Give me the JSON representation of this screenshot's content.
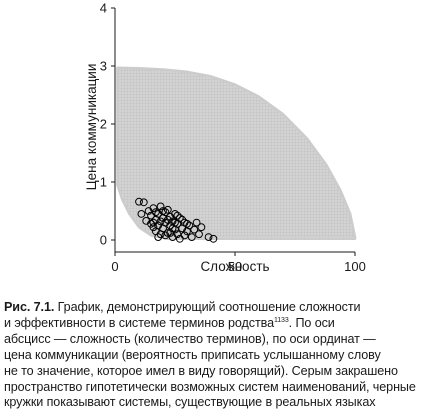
{
  "chart_data": {
    "type": "scatter",
    "title": "",
    "xlabel": "Сложность",
    "ylabel": "Цена коммуникации",
    "xlim": [
      0,
      100
    ],
    "ylim": [
      0,
      4
    ],
    "xticks": [
      "0",
      "50",
      "100"
    ],
    "yticks": [
      "0",
      "1",
      "2",
      "3",
      "4"
    ],
    "grid": false,
    "series": [
      {
        "role": "possible-systems",
        "color": "#cccccc",
        "marker": "dot",
        "region_upper_boundary": [
          {
            "x": 1,
            "y": 2.97
          },
          {
            "x": 10,
            "y": 2.96
          },
          {
            "x": 20,
            "y": 2.94
          },
          {
            "x": 30,
            "y": 2.9
          },
          {
            "x": 40,
            "y": 2.82
          },
          {
            "x": 50,
            "y": 2.68
          },
          {
            "x": 60,
            "y": 2.47
          },
          {
            "x": 70,
            "y": 2.17
          },
          {
            "x": 80,
            "y": 1.75
          },
          {
            "x": 88,
            "y": 1.3
          },
          {
            "x": 94,
            "y": 0.85
          },
          {
            "x": 98,
            "y": 0.45
          },
          {
            "x": 100,
            "y": 0.05
          }
        ],
        "region_lower_boundary": [
          {
            "x": 1,
            "y": 0.95
          },
          {
            "x": 3,
            "y": 0.7
          },
          {
            "x": 6,
            "y": 0.45
          },
          {
            "x": 10,
            "y": 0.22
          },
          {
            "x": 15,
            "y": 0.08
          },
          {
            "x": 22,
            "y": 0.02
          },
          {
            "x": 100,
            "y": 0.02
          }
        ]
      },
      {
        "role": "real-systems",
        "color": "#000000",
        "marker": "open-circle",
        "points": [
          {
            "x": 10,
            "y": 0.66
          },
          {
            "x": 12,
            "y": 0.65
          },
          {
            "x": 11,
            "y": 0.45
          },
          {
            "x": 13,
            "y": 0.33
          },
          {
            "x": 14,
            "y": 0.5
          },
          {
            "x": 15,
            "y": 0.28
          },
          {
            "x": 15,
            "y": 0.42
          },
          {
            "x": 16,
            "y": 0.22
          },
          {
            "x": 16,
            "y": 0.55
          },
          {
            "x": 17,
            "y": 0.35
          },
          {
            "x": 17,
            "y": 0.15
          },
          {
            "x": 18,
            "y": 0.45
          },
          {
            "x": 18,
            "y": 0.25
          },
          {
            "x": 19,
            "y": 0.58
          },
          {
            "x": 19,
            "y": 0.1
          },
          {
            "x": 20,
            "y": 0.38
          },
          {
            "x": 20,
            "y": 0.2
          },
          {
            "x": 21,
            "y": 0.48
          },
          {
            "x": 21,
            "y": 0.3
          },
          {
            "x": 22,
            "y": 0.12
          },
          {
            "x": 22,
            "y": 0.52
          },
          {
            "x": 23,
            "y": 0.25
          },
          {
            "x": 23,
            "y": 0.4
          },
          {
            "x": 24,
            "y": 0.05
          },
          {
            "x": 24,
            "y": 0.32
          },
          {
            "x": 25,
            "y": 0.18
          },
          {
            "x": 25,
            "y": 0.45
          },
          {
            "x": 26,
            "y": 0.1
          },
          {
            "x": 26,
            "y": 0.28
          },
          {
            "x": 27,
            "y": 0.38
          },
          {
            "x": 27,
            "y": 0.02
          },
          {
            "x": 28,
            "y": 0.2
          },
          {
            "x": 29,
            "y": 0.3
          },
          {
            "x": 29,
            "y": 0.08
          },
          {
            "x": 30,
            "y": 0.15
          },
          {
            "x": 31,
            "y": 0.25
          },
          {
            "x": 32,
            "y": 0.05
          },
          {
            "x": 33,
            "y": 0.18
          },
          {
            "x": 35,
            "y": 0.1
          },
          {
            "x": 36,
            "y": 0.22
          },
          {
            "x": 39,
            "y": 0.05
          },
          {
            "x": 41,
            "y": 0.02
          },
          {
            "x": 16,
            "y": 0.3
          },
          {
            "x": 18,
            "y": 0.05
          },
          {
            "x": 20,
            "y": 0.5
          },
          {
            "x": 21,
            "y": 0.08
          },
          {
            "x": 22,
            "y": 0.35
          },
          {
            "x": 24,
            "y": 0.2
          },
          {
            "x": 26,
            "y": 0.42
          },
          {
            "x": 28,
            "y": 0.35
          },
          {
            "x": 30,
            "y": 0.28
          },
          {
            "x": 34,
            "y": 0.3
          },
          {
            "x": 19,
            "y": 0.32
          },
          {
            "x": 23,
            "y": 0.12
          },
          {
            "x": 17,
            "y": 0.48
          },
          {
            "x": 25,
            "y": 0.3
          }
        ]
      }
    ]
  },
  "caption": {
    "label": "Рис. 7.1.",
    "lines": [
      "График, демонстрирующий соотношение сложности",
      "и эффективности в системе терминов родства",
      "1133",
      ". По оси",
      "абсцисс — сложность (количество терминов), по оси ординат —",
      "цена коммуникации (вероятность приписать услышанному слову",
      "не то значение, которое имел в виду говорящий). Серым закрашено",
      "пространство гипотетически возможных систем наименований, черные",
      "кружки показывают системы, существующие в реальных языках"
    ]
  }
}
